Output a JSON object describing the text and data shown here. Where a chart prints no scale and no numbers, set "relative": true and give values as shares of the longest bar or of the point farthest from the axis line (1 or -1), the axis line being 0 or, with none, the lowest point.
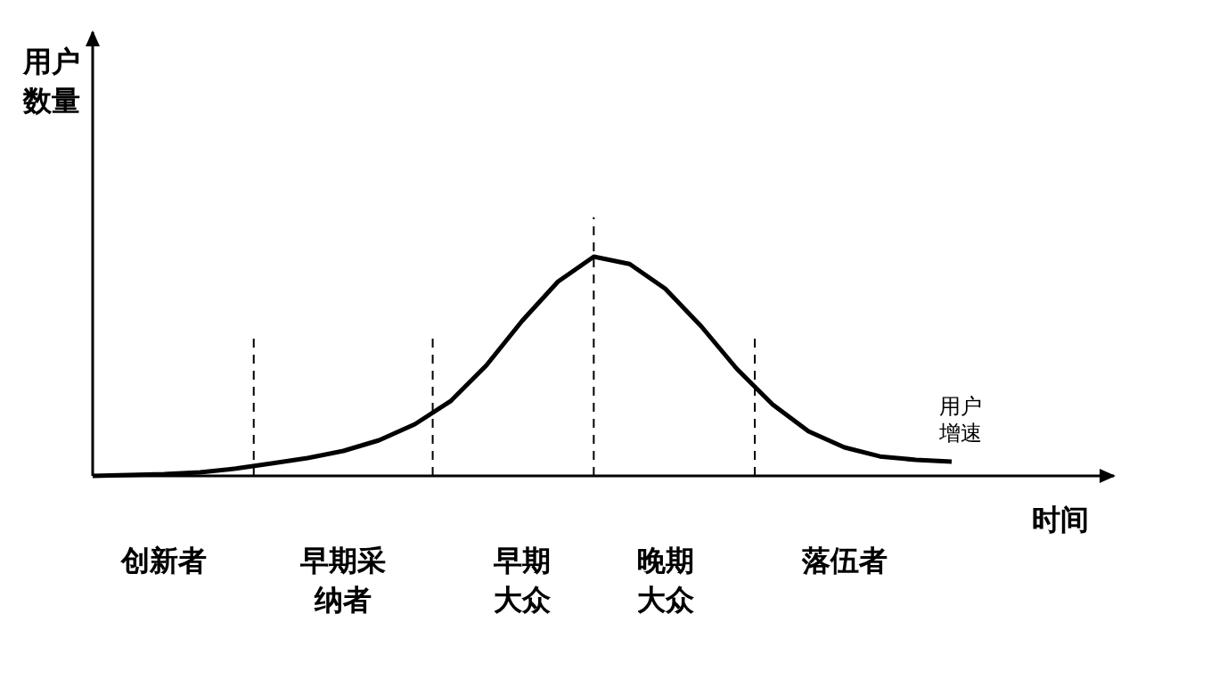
{
  "chart_data": {
    "type": "line",
    "relative": true,
    "xlabel": "时间",
    "ylabel": "用户数量",
    "categories": [
      null,
      null,
      "创新者",
      null,
      null,
      null,
      null,
      "早期采纳者",
      null,
      null,
      null,
      null,
      "早期大众",
      null,
      null,
      null,
      "晚期大众",
      null,
      null,
      null,
      null,
      "落伍者",
      null,
      null,
      null
    ],
    "series": [
      {
        "color": "#000000",
        "values": [
          0,
          0.004,
          0.008,
          0.016,
          0.033,
          0.057,
          0.081,
          0.114,
          0.163,
          0.236,
          0.341,
          0.504,
          0.707,
          0.886,
          1,
          0.967,
          0.854,
          0.683,
          0.488,
          0.325,
          0.203,
          0.13,
          0.089,
          0.073,
          0.065
        ]
      }
    ],
    "annotations": [
      "用户增速"
    ]
  }
}
